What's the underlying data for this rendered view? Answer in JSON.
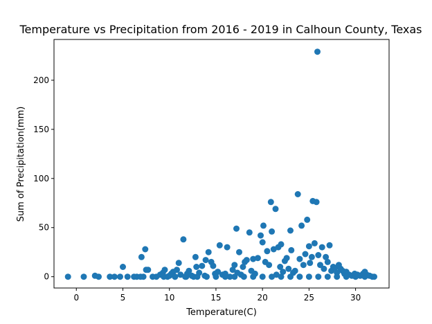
{
  "chart_data": {
    "type": "scatter",
    "title": "Temperature vs Precipitation from 2016 - 2019 in Calhoun County, Texas",
    "xlabel": "Temperature(C)",
    "ylabel": "Sum of Precipitation(mm)",
    "xlim": [
      -2.4,
      33.6
    ],
    "ylim": [
      -11.5,
      241.5
    ],
    "xticks": [
      0,
      5,
      10,
      15,
      20,
      25,
      30
    ],
    "yticks": [
      0,
      50,
      100,
      150,
      200
    ],
    "grid": false,
    "legend": "none",
    "marker_color": "#1f77b4",
    "points": [
      [
        -0.9,
        0
      ],
      [
        0.8,
        0
      ],
      [
        2.0,
        1
      ],
      [
        2.4,
        0
      ],
      [
        3.6,
        0
      ],
      [
        4.1,
        0
      ],
      [
        4.7,
        0
      ],
      [
        5.0,
        10
      ],
      [
        5.5,
        0
      ],
      [
        6.2,
        0
      ],
      [
        6.5,
        0
      ],
      [
        6.9,
        0
      ],
      [
        7.0,
        20
      ],
      [
        7.2,
        0
      ],
      [
        7.4,
        28
      ],
      [
        7.5,
        7
      ],
      [
        7.7,
        7
      ],
      [
        8.2,
        0
      ],
      [
        8.6,
        0
      ],
      [
        9.0,
        2
      ],
      [
        9.3,
        4
      ],
      [
        9.5,
        7
      ],
      [
        9.8,
        0
      ],
      [
        10.0,
        1
      ],
      [
        10.2,
        3
      ],
      [
        10.4,
        5
      ],
      [
        10.6,
        0
      ],
      [
        10.8,
        7
      ],
      [
        11.0,
        14
      ],
      [
        11.2,
        2
      ],
      [
        11.5,
        38
      ],
      [
        11.7,
        0
      ],
      [
        11.9,
        3
      ],
      [
        12.1,
        6
      ],
      [
        12.4,
        1
      ],
      [
        12.6,
        0
      ],
      [
        12.8,
        20
      ],
      [
        12.9,
        10
      ],
      [
        13.2,
        4
      ],
      [
        13.5,
        11
      ],
      [
        13.8,
        1
      ],
      [
        13.9,
        17
      ],
      [
        14.2,
        25
      ],
      [
        14.5,
        15
      ],
      [
        14.7,
        11
      ],
      [
        14.9,
        3
      ],
      [
        15.2,
        5
      ],
      [
        15.4,
        32
      ],
      [
        15.7,
        2
      ],
      [
        16.0,
        3
      ],
      [
        16.2,
        30
      ],
      [
        16.5,
        0
      ],
      [
        16.8,
        7
      ],
      [
        17.0,
        12
      ],
      [
        17.2,
        49
      ],
      [
        17.3,
        4
      ],
      [
        17.5,
        25
      ],
      [
        17.7,
        2
      ],
      [
        17.9,
        10
      ],
      [
        18.1,
        15
      ],
      [
        18.3,
        17
      ],
      [
        18.6,
        45
      ],
      [
        18.8,
        6
      ],
      [
        19.0,
        18
      ],
      [
        19.2,
        3
      ],
      [
        19.5,
        19
      ],
      [
        19.8,
        42
      ],
      [
        20.0,
        35
      ],
      [
        20.1,
        52
      ],
      [
        20.3,
        15
      ],
      [
        20.5,
        26
      ],
      [
        20.7,
        12
      ],
      [
        20.9,
        76
      ],
      [
        21.0,
        46
      ],
      [
        21.2,
        28
      ],
      [
        21.4,
        69
      ],
      [
        21.5,
        2
      ],
      [
        21.7,
        30
      ],
      [
        21.9,
        10
      ],
      [
        22.0,
        33
      ],
      [
        22.2,
        5
      ],
      [
        22.4,
        16
      ],
      [
        22.6,
        19
      ],
      [
        22.8,
        8
      ],
      [
        23.0,
        47
      ],
      [
        23.1,
        27
      ],
      [
        23.3,
        4
      ],
      [
        23.5,
        6
      ],
      [
        23.8,
        84
      ],
      [
        24.0,
        18
      ],
      [
        24.2,
        52
      ],
      [
        24.4,
        12
      ],
      [
        24.6,
        23
      ],
      [
        24.8,
        58
      ],
      [
        25.0,
        31
      ],
      [
        25.1,
        14
      ],
      [
        25.3,
        20
      ],
      [
        25.4,
        77
      ],
      [
        25.6,
        34
      ],
      [
        25.8,
        76
      ],
      [
        25.9,
        229
      ],
      [
        26.0,
        22
      ],
      [
        26.2,
        12
      ],
      [
        26.4,
        30
      ],
      [
        26.6,
        8
      ],
      [
        26.8,
        20
      ],
      [
        27.0,
        15
      ],
      [
        27.2,
        32
      ],
      [
        27.4,
        6
      ],
      [
        27.6,
        10
      ],
      [
        27.8,
        9
      ],
      [
        28.0,
        4
      ],
      [
        28.2,
        12
      ],
      [
        28.4,
        8
      ],
      [
        28.6,
        6
      ],
      [
        28.8,
        3
      ],
      [
        29.0,
        5
      ],
      [
        29.3,
        2
      ],
      [
        29.6,
        1
      ],
      [
        29.9,
        3
      ],
      [
        30.2,
        2
      ],
      [
        30.5,
        1
      ],
      [
        30.8,
        3
      ],
      [
        31.0,
        5
      ],
      [
        31.2,
        2
      ],
      [
        31.5,
        1
      ],
      [
        31.8,
        0
      ],
      [
        32.0,
        0
      ],
      [
        9.4,
        0
      ],
      [
        10.6,
        0
      ],
      [
        11.8,
        0
      ],
      [
        13.0,
        0
      ],
      [
        14.0,
        0
      ],
      [
        15.0,
        0
      ],
      [
        16.0,
        0
      ],
      [
        17.0,
        0
      ],
      [
        18.0,
        0
      ],
      [
        19.0,
        0
      ],
      [
        20.0,
        0
      ],
      [
        21.0,
        0
      ],
      [
        22.0,
        0
      ],
      [
        23.0,
        0
      ],
      [
        24.0,
        0
      ],
      [
        25.0,
        0
      ],
      [
        26.0,
        0
      ],
      [
        27.0,
        0
      ],
      [
        28.0,
        0
      ],
      [
        29.0,
        0
      ],
      [
        30.0,
        0
      ],
      [
        31.0,
        0
      ]
    ]
  }
}
